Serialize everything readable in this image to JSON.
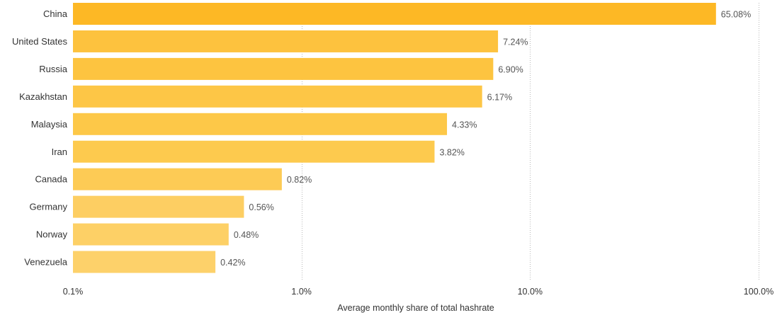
{
  "chart_data": {
    "type": "bar",
    "orientation": "horizontal",
    "x_scale": "log",
    "xlim": [
      0.1,
      100
    ],
    "xlabel": "Average monthly share of total hashrate",
    "ylabel": "",
    "title": "",
    "grid": "vertical dotted",
    "x_ticks": [
      {
        "value": 0.1,
        "label": "0.1%"
      },
      {
        "value": 1,
        "label": "1.0%"
      },
      {
        "value": 10,
        "label": "10.0%"
      },
      {
        "value": 100,
        "label": "100.0%"
      }
    ],
    "categories": [
      "China",
      "United States",
      "Russia",
      "Kazakhstan",
      "Malaysia",
      "Iran",
      "Canada",
      "Germany",
      "Norway",
      "Venezuela"
    ],
    "values": [
      65.08,
      7.24,
      6.9,
      6.17,
      4.33,
      3.82,
      0.82,
      0.56,
      0.48,
      0.42
    ],
    "value_labels": [
      "65.08%",
      "7.24%",
      "6.90%",
      "6.17%",
      "4.33%",
      "3.82%",
      "0.82%",
      "0.56%",
      "0.48%",
      "0.42%"
    ],
    "bar_colors": [
      "#FDB825",
      "#FDC23E",
      "#FDC440",
      "#FDC646",
      "#FDC848",
      "#FDCA4E",
      "#FDCB55",
      "#FDCE62",
      "#FDD066",
      "#FDD16A"
    ]
  }
}
